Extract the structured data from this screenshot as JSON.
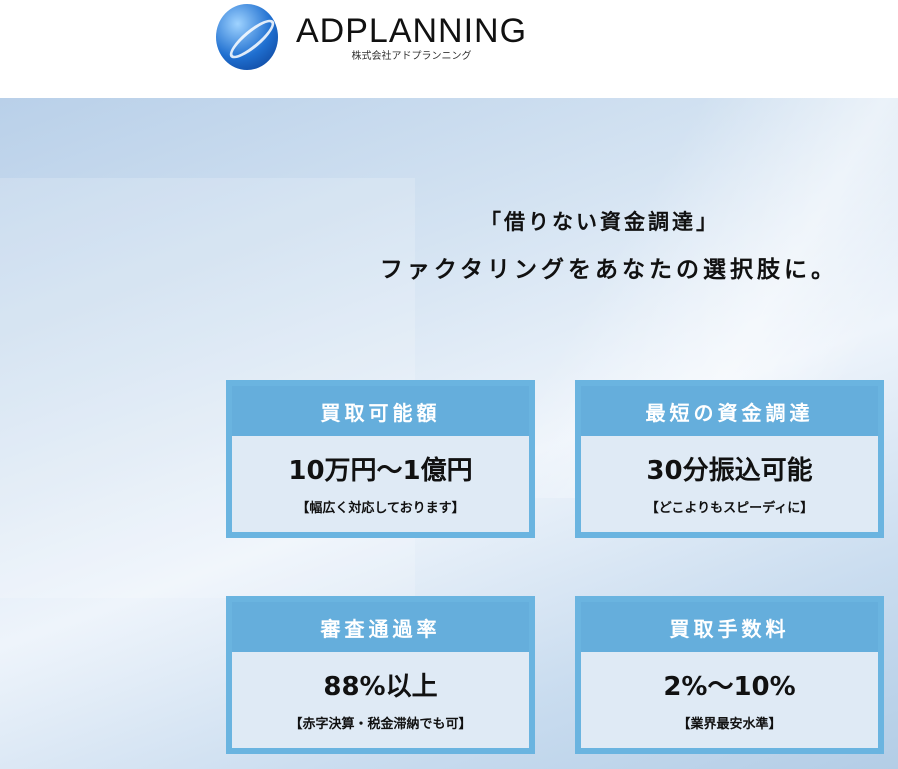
{
  "header": {
    "brand": "ADPLANNING",
    "brand_sub": "株式会社アドプランニング"
  },
  "hero": {
    "catch_line1": "「借りない資金調達」",
    "catch_line2": "ファクタリングをあなたの選択肢に。"
  },
  "cards": [
    {
      "title": "買取可能額",
      "value": "10万円〜1億円",
      "note": "【幅広く対応しております】"
    },
    {
      "title": "最短の資金調達",
      "value": "30分振込可能",
      "note": "【どこよりもスピーディに】"
    },
    {
      "title": "審査通過率",
      "value": "88%以上",
      "note": "【赤字決算・税金滞納でも可】"
    },
    {
      "title": "買取手数料",
      "value": "2%〜10%",
      "note": "【業界最安水準】"
    }
  ]
}
